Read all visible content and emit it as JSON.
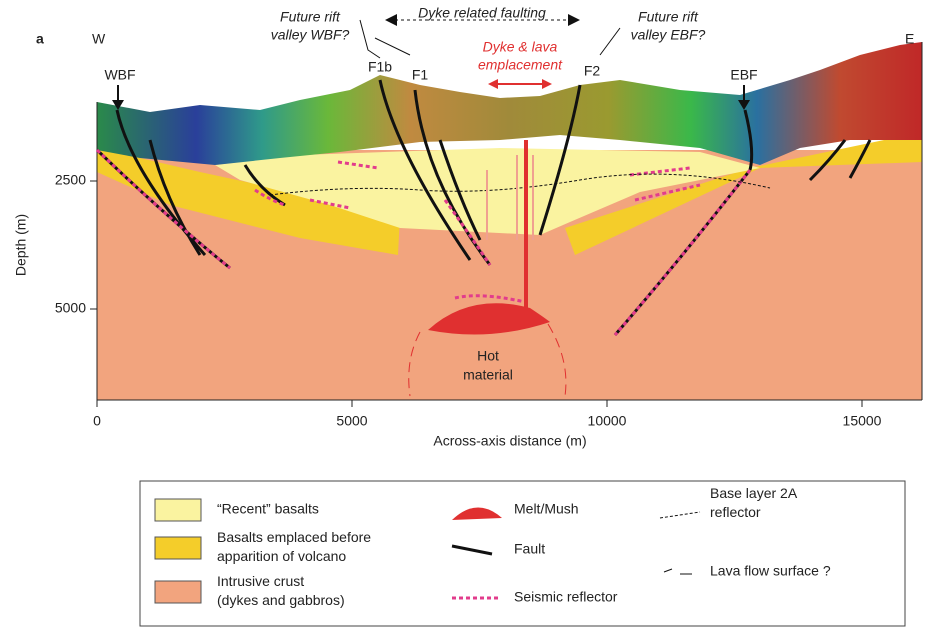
{
  "panel_label": "a",
  "west": "W",
  "east": "E",
  "labels": {
    "future_wbf": [
      "Future rift",
      "valley WBF?"
    ],
    "dyke_faulting": "Dyke related faulting",
    "future_ebf": [
      "Future rift",
      "valley EBF?"
    ],
    "dyke_lava": [
      "Dyke & lava",
      "emplacement"
    ],
    "wbf": "WBF",
    "f1b": "F1b",
    "f1": "F1",
    "f2": "F2",
    "ebf": "EBF",
    "hot_material": [
      "Hot",
      "material"
    ]
  },
  "x_axis": {
    "label": "Across-axis distance (m)",
    "ticks": [
      0,
      5000,
      10000,
      15000
    ]
  },
  "y_axis": {
    "label": "Depth (m)",
    "ticks": [
      2500,
      5000
    ]
  },
  "legend": [
    {
      "label": [
        "“Recent” basalts"
      ]
    },
    {
      "label": [
        "Basalts emplaced before",
        "apparition of volcano"
      ]
    },
    {
      "label": [
        "Intrusive crust",
        "(dykes and gabbros)"
      ]
    },
    {
      "label": [
        "Melt/Mush"
      ]
    },
    {
      "label": [
        "Fault"
      ]
    },
    {
      "label": [
        "Seismic reflector"
      ]
    },
    {
      "label": [
        "Base layer 2A",
        "reflector"
      ]
    },
    {
      "label": [
        "Lava flow surface ?"
      ]
    }
  ]
}
